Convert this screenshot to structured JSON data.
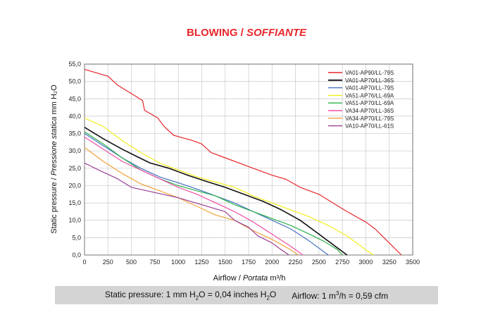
{
  "title": {
    "main": "BLOWING / ",
    "italic": "SOFFIANTE"
  },
  "footer": {
    "static_pre": "Static pressure: 1 mm H",
    "static_sub1": "2",
    "static_mid": "O = 0,04 inches H",
    "static_sub2": "2",
    "static_post": "O",
    "airflow_pre": "Airflow: 1 m",
    "airflow_sup": "3",
    "airflow_post": "/h = 0,59 cfm"
  },
  "chart_data": {
    "type": "line",
    "title": "BLOWING / SOFFIANTE",
    "xlabel": "Airflow / Portata m³/h",
    "xlabel_main": "Airflow / ",
    "xlabel_italic": "Portata",
    "xlabel_unit": " m³/h",
    "ylabel": "Static pressure / Pressione statica mm H2O",
    "ylabel_main": "Static pressure / ",
    "ylabel_italic": "Pressione statica",
    "ylabel_unit": " mm H₂O",
    "xlim": [
      0,
      3500
    ],
    "ylim": [
      0,
      55
    ],
    "xticks": [
      0,
      250,
      500,
      750,
      1000,
      1250,
      1500,
      1750,
      2000,
      2250,
      2500,
      2750,
      3000,
      3250,
      3500
    ],
    "yticks": [
      "0,0",
      "5,0",
      "10,0",
      "15,0",
      "20,0",
      "25,0",
      "30,0",
      "35,0",
      "40,0",
      "45,0",
      "50,0",
      "55,0"
    ],
    "grid": true,
    "legend_position": "top-right",
    "series": [
      {
        "name": "VA01-AP90/LL-79S",
        "color": "#e8262b",
        "x": [
          0,
          250,
          350,
          500,
          620,
          640,
          780,
          850,
          950,
          1150,
          1250,
          1350,
          1500,
          1750,
          2000,
          2150,
          2300,
          2500,
          2650,
          2800,
          3000,
          3100,
          3250,
          3380
        ],
        "y": [
          53.5,
          51.5,
          49,
          46.5,
          44.5,
          41.7,
          39.5,
          37,
          34.5,
          33,
          32,
          29.5,
          28,
          25.5,
          23,
          21.8,
          19.5,
          17.5,
          15,
          12.5,
          9.5,
          7.5,
          3.5,
          0
        ]
      },
      {
        "name": "VA01-AP70/LL-36S",
        "color": "#111111",
        "x": [
          0,
          200,
          400,
          550,
          700,
          900,
          1100,
          1300,
          1500,
          1700,
          1900,
          2100,
          2300,
          2500,
          2650,
          2800
        ],
        "y": [
          36.8,
          33.5,
          30.5,
          28.5,
          26.5,
          25,
          23,
          21.2,
          19.5,
          17.5,
          15.5,
          13,
          10,
          6,
          3,
          0
        ]
      },
      {
        "name": "VA01-AP70/LL-79S",
        "color": "#4472c4",
        "x": [
          0,
          200,
          400,
          600,
          800,
          1000,
          1200,
          1400,
          1600,
          1800,
          2000,
          2200,
          2400,
          2600
        ],
        "y": [
          35,
          31.5,
          28,
          25,
          22.5,
          20.8,
          19,
          17,
          15,
          12.5,
          10,
          7.5,
          4,
          0
        ]
      },
      {
        "name": "VA51-AP76/LL-69A",
        "color": "#f0ef1c",
        "x": [
          0,
          200,
          400,
          600,
          800,
          1000,
          1200,
          1400,
          1600,
          1800,
          2000,
          2200,
          2400,
          2600,
          2800,
          3000,
          3080
        ],
        "y": [
          39.5,
          37,
          33,
          29.5,
          26.5,
          24.5,
          22.5,
          21,
          19.5,
          17,
          15,
          13,
          11,
          8.5,
          5.5,
          1.5,
          0
        ]
      },
      {
        "name": "VA51-AP70/LL-69A",
        "color": "#2db24a",
        "x": [
          0,
          200,
          400,
          600,
          800,
          1000,
          1200,
          1400,
          1600,
          1800,
          2000,
          2200,
          2400,
          2550,
          2700,
          2750
        ],
        "y": [
          35.5,
          32,
          28,
          24.5,
          22,
          20,
          18.5,
          17,
          14.5,
          12.5,
          10.5,
          8.5,
          6,
          4,
          1.5,
          0
        ]
      },
      {
        "name": "VA34-AP70/LL-36S",
        "color": "#ef4fa6",
        "x": [
          0,
          200,
          400,
          600,
          800,
          1000,
          1200,
          1400,
          1600,
          1800,
          2000,
          2200,
          2330
        ],
        "y": [
          34,
          30.5,
          27,
          24.5,
          22,
          19.5,
          17.5,
          15,
          12.5,
          9.5,
          6,
          2.5,
          0
        ]
      },
      {
        "name": "VA34-AP70/LL-79S",
        "color": "#f0a23a",
        "x": [
          0,
          200,
          400,
          600,
          800,
          1000,
          1200,
          1400,
          1600,
          1800,
          2000,
          2200,
          2280
        ],
        "y": [
          31,
          27,
          23.5,
          20.5,
          18.5,
          16.5,
          14,
          11.5,
          10,
          7,
          4.5,
          1.5,
          0
        ]
      },
      {
        "name": "VA10-AP70/LL-61S",
        "color": "#9b3f97",
        "x": [
          0,
          150,
          350,
          500,
          750,
          1000,
          1250,
          1500,
          1600,
          1750,
          1850,
          2000,
          2100,
          2180
        ],
        "y": [
          26.5,
          24.5,
          22,
          19.5,
          18,
          16.5,
          14.5,
          12.5,
          10,
          8,
          5.5,
          3.5,
          1.5,
          0
        ]
      }
    ]
  }
}
